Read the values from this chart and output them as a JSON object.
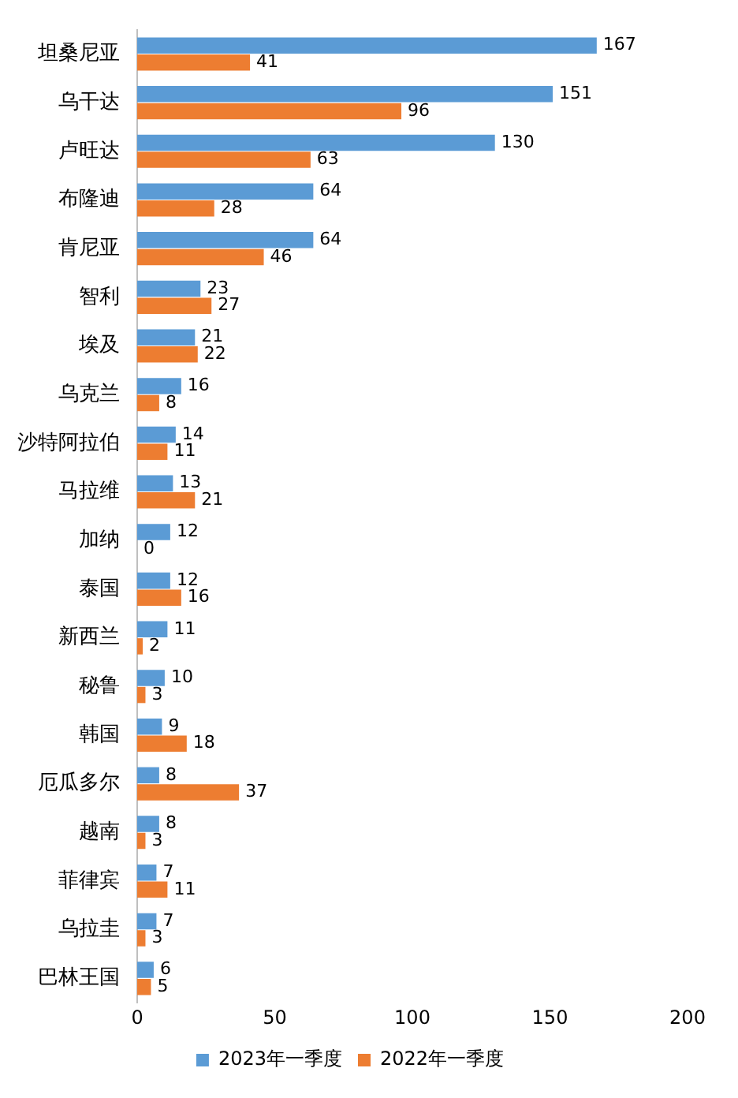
{
  "chart_data": {
    "type": "bar",
    "orientation": "horizontal",
    "categories": [
      "坦桑尼亚",
      "乌干达",
      "卢旺达",
      "布隆迪",
      "肯尼亚",
      "智利",
      "埃及",
      "乌克兰",
      "沙特阿拉伯",
      "马拉维",
      "加纳",
      "泰国",
      "新西兰",
      "秘鲁",
      "韩国",
      "厄瓜多尔",
      "越南",
      "菲律宾",
      "乌拉圭",
      "巴林王国"
    ],
    "series": [
      {
        "name": "2023年一季度",
        "color": "#5b9bd5",
        "values": [
          167,
          151,
          130,
          64,
          64,
          23,
          21,
          16,
          14,
          13,
          12,
          12,
          11,
          10,
          9,
          8,
          8,
          7,
          7,
          6
        ]
      },
      {
        "name": "2022年一季度",
        "color": "#ed7d31",
        "values": [
          41,
          96,
          63,
          28,
          46,
          27,
          22,
          8,
          11,
          21,
          0,
          16,
          2,
          3,
          18,
          37,
          3,
          11,
          3,
          5
        ]
      }
    ],
    "xlim": [
      0,
      200
    ],
    "xticks": [
      0,
      50,
      100,
      150,
      200
    ],
    "data_labels": true,
    "legend": "bottom"
  }
}
